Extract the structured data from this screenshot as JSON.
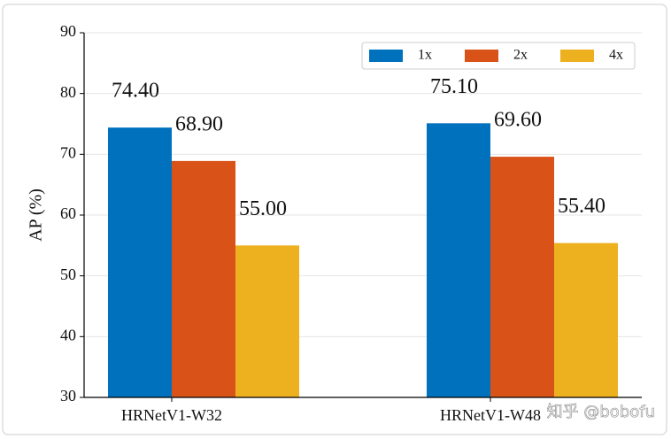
{
  "chart_data": {
    "type": "bar",
    "y_label": "AP (%)",
    "categories": [
      "HRNetV1-W32",
      "HRNetV1-W48"
    ],
    "series": [
      {
        "name": "1x",
        "color": "#0072bd",
        "values": [
          74.4,
          75.1
        ],
        "value_labels": [
          "74.40",
          "75.10"
        ]
      },
      {
        "name": "2x",
        "color": "#d95319",
        "values": [
          68.9,
          69.6
        ],
        "value_labels": [
          "68.90",
          "69.60"
        ]
      },
      {
        "name": "4x",
        "color": "#edb120",
        "values": [
          55.0,
          55.4
        ],
        "value_labels": [
          "55.00",
          "55.40"
        ]
      }
    ],
    "ylim": [
      30,
      90
    ],
    "yticks": [
      30,
      40,
      50,
      60,
      70,
      80,
      90
    ],
    "grid": true,
    "legend": "upper right",
    "watermark": "知乎 @bobofu"
  }
}
